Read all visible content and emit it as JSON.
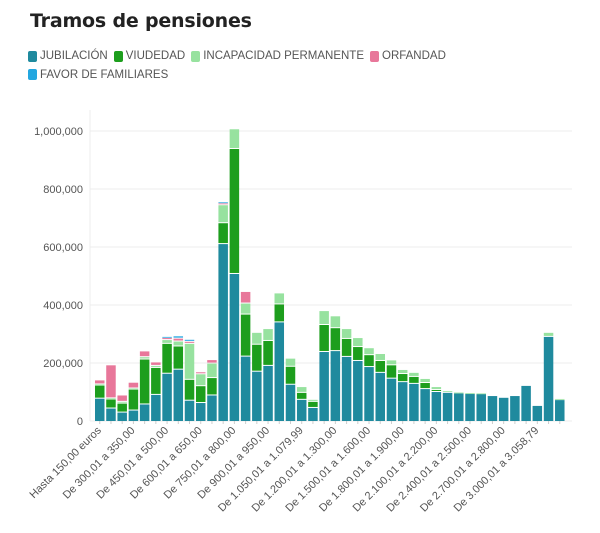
{
  "title": "Tramos de pensiones",
  "chart_data": {
    "type": "bar",
    "stacked": true,
    "title": "Tramos de pensiones",
    "xlabel": "",
    "ylabel": "",
    "ylim": [
      0,
      1050000
    ],
    "yticks": [
      0,
      200000,
      400000,
      600000,
      800000,
      1000000
    ],
    "ytick_labels": [
      "0",
      "200,000",
      "400,000",
      "600,000",
      "800,000",
      "1,000,000"
    ],
    "grid": true,
    "legend_position": "top-left",
    "categories": [
      "Hasta 150,00 euros",
      "",
      "",
      "De 300,01 a 350,00",
      "",
      "",
      "De 450,01 a 500,00",
      "",
      "",
      "De 600,01 a 650,00",
      "",
      "",
      "De 750,01 a 800,00",
      "",
      "",
      "De 900,01 a 950,00",
      "",
      "",
      "De 1.050,01 a 1.079,99",
      "",
      "",
      "De 1.200,01 a 1.300,00",
      "",
      "",
      "De 1.500,01 a 1.600,00",
      "",
      "",
      "De 1.800,01 a 1.900,00",
      "",
      "",
      "De 2.100,01 a 2.200,00",
      "",
      "",
      "De 2.400,01 a 2.500,00",
      "",
      "",
      "De 2.700,01 a 2.800,00",
      "",
      "",
      "De 3.000,01 a 3.058,79",
      "",
      ""
    ],
    "series": [
      {
        "name": "JUBILACIÓN",
        "color": "#1f8a9e",
        "values": [
          77000,
          43000,
          29000,
          36000,
          57000,
          90000,
          163000,
          177000,
          70000,
          62000,
          88000,
          610000,
          507000,
          222000,
          170000,
          190000,
          340000,
          125000,
          73000,
          45000,
          238000,
          241000,
          221000,
          207000,
          186000,
          166000,
          146000,
          134000,
          128000,
          110000,
          100000,
          97000,
          95000,
          93000,
          93000,
          86000,
          80000,
          86000,
          121000,
          52000,
          290000,
          72000
        ]
      },
      {
        "name": "VIUDEDAD",
        "color": "#1d9e1d",
        "values": [
          45000,
          31000,
          31000,
          72000,
          155000,
          93000,
          103000,
          80000,
          72000,
          58000,
          60000,
          72000,
          431000,
          145000,
          93000,
          86000,
          62000,
          62000,
          24000,
          21000,
          93000,
          79000,
          62000,
          48000,
          41000,
          41000,
          46000,
          28000,
          24000,
          21000,
          7000,
          0,
          0,
          0,
          0,
          0,
          0,
          0,
          0,
          0,
          0,
          0
        ]
      },
      {
        "name": "INCAPACIDAD PERMANENTE",
        "color": "#97e29f",
        "values": [
          4000,
          4000,
          6000,
          4000,
          8000,
          7000,
          13000,
          17000,
          124000,
          41000,
          50000,
          62000,
          68000,
          38000,
          41000,
          41000,
          38000,
          28000,
          20000,
          7000,
          48000,
          41000,
          34000,
          31000,
          24000,
          24000,
          17000,
          14000,
          14000,
          14000,
          10000,
          6000,
          3000,
          3000,
          2000,
          0,
          0,
          0,
          0,
          0,
          14000,
          4000
        ]
      },
      {
        "name": "ORFANDAD",
        "color": "#e8779a",
        "values": [
          14000,
          114000,
          22000,
          20000,
          20000,
          12000,
          7000,
          10000,
          7000,
          7000,
          12000,
          6000,
          0,
          40000,
          0,
          0,
          0,
          0,
          0,
          0,
          0,
          0,
          0,
          0,
          0,
          0,
          0,
          0,
          0,
          0,
          0,
          0,
          0,
          0,
          0,
          0,
          0,
          0,
          0,
          0,
          0,
          0
        ]
      },
      {
        "name": "FAVOR DE FAMILIARES",
        "color": "#23a7e0",
        "values": [
          0,
          0,
          0,
          0,
          0,
          0,
          4000,
          8000,
          7000,
          0,
          0,
          4000,
          0,
          0,
          0,
          0,
          0,
          0,
          0,
          0,
          0,
          0,
          0,
          0,
          0,
          0,
          0,
          0,
          0,
          0,
          0,
          0,
          0,
          0,
          0,
          0,
          0,
          0,
          0,
          0,
          0,
          0
        ]
      }
    ]
  }
}
